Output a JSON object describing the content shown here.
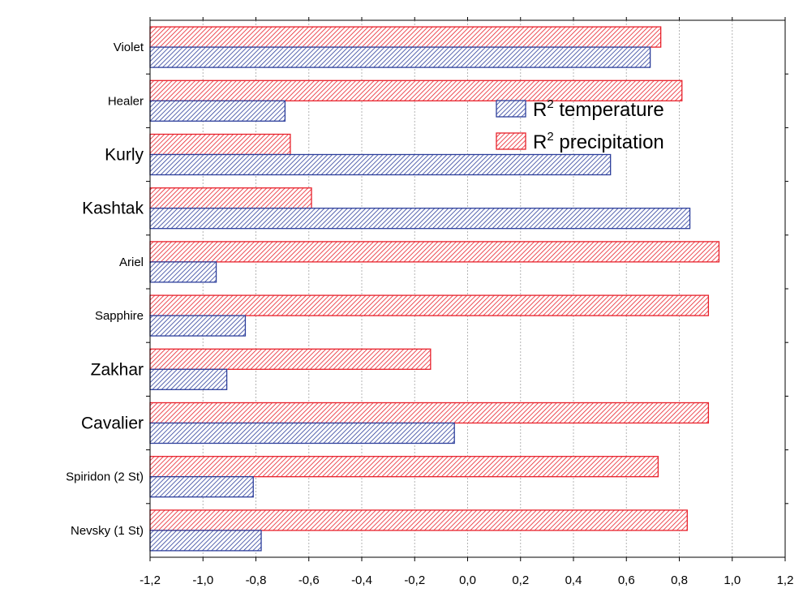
{
  "chart_data": {
    "type": "bar",
    "orientation": "horizontal",
    "categories": [
      "Violet",
      "Healer",
      "Kurly",
      "Kashtak",
      "Ariel",
      "Sapphire",
      "Zakhar",
      "Cavalier",
      "Spiridon (2 St)",
      "Nevsky (1 St)"
    ],
    "category_emphasis": [
      false,
      false,
      true,
      true,
      false,
      false,
      true,
      true,
      false,
      false
    ],
    "series": [
      {
        "name": "R² temperature",
        "name_base": "R",
        "name_sup": "2",
        "name_rest": " temperature",
        "color": "#2c3e9b",
        "values": [
          0.69,
          -0.69,
          0.54,
          0.84,
          -0.95,
          -0.84,
          -0.91,
          -0.05,
          -0.81,
          -0.78
        ]
      },
      {
        "name": "R² precipitation",
        "name_base": "R",
        "name_sup": "2",
        "name_rest": " precipitation",
        "color": "#e8202a",
        "values": [
          0.73,
          0.81,
          -0.67,
          -0.59,
          0.95,
          0.91,
          -0.14,
          0.91,
          0.72,
          0.83
        ]
      }
    ],
    "xlim": [
      -1.2,
      1.2
    ],
    "xticks": [
      -1.2,
      -1.0,
      -0.8,
      -0.6,
      -0.4,
      -0.2,
      0.0,
      0.2,
      0.4,
      0.6,
      0.8,
      1.0,
      1.2
    ],
    "xtick_labels": [
      "-1,2",
      "-1,0",
      "-0,8",
      "-0,6",
      "-0,4",
      "-0,2",
      "0,0",
      "0,2",
      "0,4",
      "0,6",
      "0,8",
      "1,0",
      "1,2"
    ],
    "grid": true,
    "legend_position": "upper-right-inside",
    "title": "",
    "xlabel": "",
    "ylabel": ""
  }
}
